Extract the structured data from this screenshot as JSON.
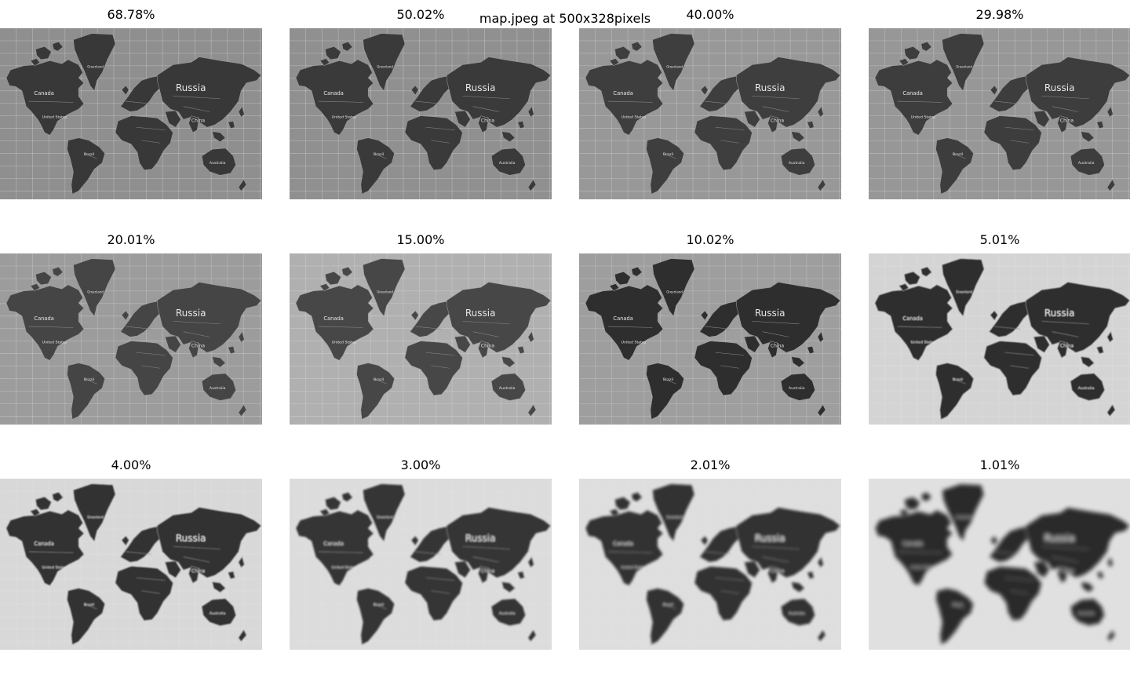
{
  "figure": {
    "title": "map.jpeg at 500x328pixels"
  },
  "panels": [
    {
      "label": "68.78%",
      "retained_percent": 68.78,
      "blur": 0.0,
      "bg": "#8f8f8f",
      "land": "#383838",
      "grid": 0.32
    },
    {
      "label": "50.02%",
      "retained_percent": 50.02,
      "blur": 0.0,
      "bg": "#909090",
      "land": "#3a3a3a",
      "grid": 0.32
    },
    {
      "label": "40.00%",
      "retained_percent": 40.0,
      "blur": 0.0,
      "bg": "#989898",
      "land": "#3e3e3e",
      "grid": 0.3
    },
    {
      "label": "29.98%",
      "retained_percent": 29.98,
      "blur": 0.0,
      "bg": "#979797",
      "land": "#3d3d3d",
      "grid": 0.3
    },
    {
      "label": "20.01%",
      "retained_percent": 20.01,
      "blur": 0.15,
      "bg": "#9c9c9c",
      "land": "#444444",
      "grid": 0.28
    },
    {
      "label": "15.00%",
      "retained_percent": 15.0,
      "blur": 0.25,
      "bg": "#b0b0b0",
      "land": "#474747",
      "grid": 0.28
    },
    {
      "label": "10.02%",
      "retained_percent": 10.02,
      "blur": 0.4,
      "bg": "#9e9e9e",
      "land": "#2e2e2e",
      "grid": 0.25
    },
    {
      "label": "5.01%",
      "retained_percent": 5.01,
      "blur": 0.9,
      "bg": "#d4d4d4",
      "land": "#2f2f2f",
      "grid": 0.2
    },
    {
      "label": "4.00%",
      "retained_percent": 4.0,
      "blur": 1.3,
      "bg": "#d8d8d8",
      "land": "#333333",
      "grid": 0.18
    },
    {
      "label": "3.00%",
      "retained_percent": 3.0,
      "blur": 1.7,
      "bg": "#dcdcdc",
      "land": "#363636",
      "grid": 0.15
    },
    {
      "label": "2.01%",
      "retained_percent": 2.01,
      "blur": 2.4,
      "bg": "#dedede",
      "land": "#333333",
      "grid": 0.1
    },
    {
      "label": "1.01%",
      "retained_percent": 1.01,
      "blur": 4.0,
      "bg": "#e0e0e0",
      "land": "#2a2a2a",
      "grid": 0.05
    }
  ],
  "map_labels": {
    "greenland": "Greenland",
    "canada": "Canada",
    "united_states": "United States",
    "brazil": "Brazil",
    "russia": "Russia",
    "china": "China",
    "australia": "Australia"
  }
}
